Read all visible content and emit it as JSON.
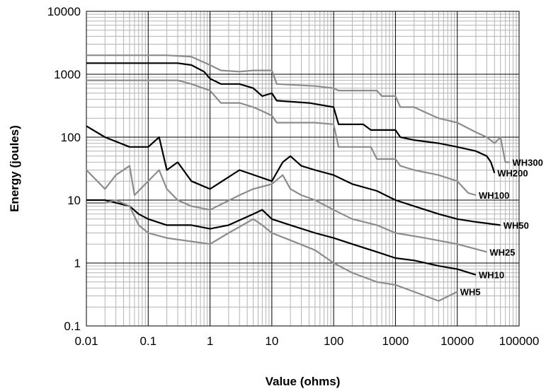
{
  "chart_data": {
    "type": "line",
    "title": "",
    "xlabel": "Value (ohms)",
    "ylabel": "Energy (joules)",
    "x_scale": "log",
    "y_scale": "log",
    "xlim": [
      0.01,
      100000
    ],
    "ylim": [
      0.1,
      10000
    ],
    "grid": true,
    "legend": "series labels at line ends",
    "x_tick_labels": [
      "0.01",
      "0.1",
      "1",
      "10",
      "100",
      "1000",
      "10000",
      "100000"
    ],
    "y_tick_labels": [
      "10000",
      "1000",
      "100",
      "10",
      "1",
      "0.1"
    ],
    "colors": {
      "black": "#000000",
      "gray": "#8c8c8c",
      "major_grid": "#000000",
      "minor_grid": "#b4b4b4"
    },
    "series": [
      {
        "name": "WH300",
        "color": "gray",
        "x": [
          0.01,
          0.2,
          0.5,
          1,
          1.5,
          3,
          5,
          10,
          12,
          50,
          100,
          120,
          500,
          600,
          1000,
          1200,
          2000,
          3000,
          5000,
          10000,
          20000,
          30000,
          40000,
          50000,
          60000,
          70000
        ],
        "y": [
          2000,
          2000,
          1900,
          1400,
          1150,
          1100,
          1150,
          1150,
          700,
          650,
          600,
          550,
          550,
          450,
          450,
          300,
          300,
          250,
          200,
          170,
          120,
          100,
          80,
          100,
          40,
          40
        ]
      },
      {
        "name": "WH200",
        "color": "black",
        "x": [
          0.01,
          0.3,
          0.5,
          0.8,
          1,
          1.5,
          3,
          5,
          7,
          10,
          12,
          40,
          100,
          120,
          300,
          400,
          1000,
          1200,
          2000,
          5000,
          10000,
          20000,
          30000,
          35000,
          40000
        ],
        "y": [
          1500,
          1500,
          1400,
          1100,
          850,
          700,
          700,
          600,
          450,
          500,
          380,
          350,
          300,
          160,
          160,
          130,
          130,
          100,
          90,
          80,
          70,
          60,
          50,
          40,
          27
        ]
      },
      {
        "name": "WH100",
        "color": "gray",
        "x": [
          0.01,
          0.3,
          0.5,
          1,
          1.5,
          3,
          5,
          7,
          10,
          12,
          50,
          100,
          120,
          400,
          500,
          1000,
          1200,
          2000,
          5000,
          10000,
          15000,
          20000
        ],
        "y": [
          800,
          800,
          700,
          550,
          350,
          350,
          300,
          260,
          220,
          170,
          170,
          160,
          70,
          70,
          45,
          45,
          35,
          30,
          25,
          20,
          13,
          12
        ]
      },
      {
        "name": "WH50",
        "color": "black",
        "x": [
          0.01,
          0.02,
          0.05,
          0.1,
          0.15,
          0.2,
          0.3,
          0.5,
          1,
          3,
          10,
          15,
          20,
          30,
          50,
          100,
          200,
          500,
          1000,
          2000,
          5000,
          10000,
          20000,
          50000
        ],
        "y": [
          150,
          100,
          70,
          70,
          100,
          30,
          40,
          20,
          15,
          30,
          20,
          40,
          50,
          35,
          30,
          25,
          18,
          14,
          10,
          8,
          6,
          5,
          4.5,
          4
        ]
      },
      {
        "name": "WH25",
        "color": "gray",
        "x": [
          0.01,
          0.02,
          0.03,
          0.05,
          0.06,
          0.1,
          0.15,
          0.2,
          0.3,
          0.5,
          1,
          3,
          5,
          10,
          15,
          20,
          30,
          50,
          100,
          200,
          500,
          1000,
          3000,
          10000,
          30000
        ],
        "y": [
          30,
          15,
          25,
          35,
          12,
          20,
          30,
          15,
          10,
          8,
          7,
          12,
          15,
          18,
          25,
          15,
          12,
          10,
          7,
          5,
          4,
          3,
          2.5,
          2,
          1.5
        ]
      },
      {
        "name": "WH10",
        "color": "black",
        "x": [
          0.01,
          0.02,
          0.05,
          0.07,
          0.1,
          0.2,
          0.5,
          1,
          2,
          5,
          7,
          10,
          20,
          50,
          100,
          200,
          500,
          1000,
          2000,
          5000,
          10000,
          20000
        ],
        "y": [
          10,
          10,
          8,
          6,
          5,
          4,
          4,
          3.5,
          4,
          6,
          7,
          5,
          4,
          3,
          2.5,
          2,
          1.5,
          1.2,
          1.1,
          0.9,
          0.8,
          0.65
        ]
      },
      {
        "name": "WH5",
        "color": "gray",
        "x": [
          0.01,
          0.02,
          0.03,
          0.05,
          0.07,
          0.1,
          0.2,
          0.5,
          1,
          2,
          5,
          7,
          10,
          20,
          50,
          100,
          200,
          500,
          1000,
          2000,
          5000,
          10000
        ],
        "y": [
          9,
          9,
          10,
          8,
          4,
          3,
          2.5,
          2.2,
          2,
          3,
          5,
          4,
          3,
          2.3,
          1.6,
          1,
          0.7,
          0.5,
          0.45,
          0.35,
          0.25,
          0.35
        ]
      }
    ]
  }
}
